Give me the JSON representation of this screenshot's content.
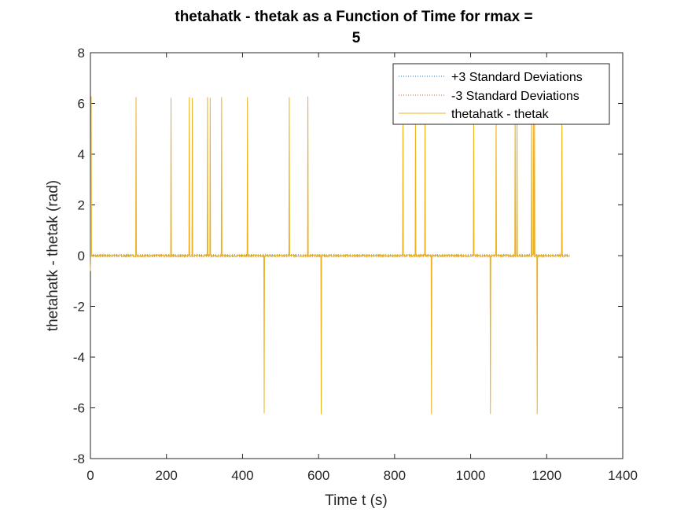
{
  "chart_data": {
    "type": "line",
    "title_line1": "thetahatk - thetak as a Function of Time for rmax =",
    "title_line2": "5",
    "xlabel": "Time t (s)",
    "ylabel": "thetahatk - thetak (rad)",
    "xlim": [
      0,
      1400
    ],
    "ylim": [
      -8,
      8
    ],
    "xticks": [
      0,
      200,
      400,
      600,
      800,
      1000,
      1200,
      1400
    ],
    "yticks": [
      -8,
      -6,
      -4,
      -2,
      0,
      2,
      4,
      6,
      8
    ],
    "grid": false,
    "legend_position": "top-right",
    "data_end_time": 1260,
    "series": [
      {
        "name": "+3 Standard Deviations",
        "color": "#0072BD",
        "style": "dotted",
        "offset": 0.03
      },
      {
        "name": "-3 Standard Deviations",
        "color": "#D95319",
        "style": "dotted",
        "offset": -0.03
      },
      {
        "name": "thetahatk - thetak",
        "color": "#EDB120",
        "style": "solid"
      }
    ],
    "positive_spikes": [
      {
        "t": 2,
        "v": 6.28
      },
      {
        "t": 120,
        "v": 6.25
      },
      {
        "t": 212,
        "v": 6.22
      },
      {
        "t": 260,
        "v": 6.25
      },
      {
        "t": 268,
        "v": 6.22
      },
      {
        "t": 308,
        "v": 6.25
      },
      {
        "t": 315,
        "v": 6.22
      },
      {
        "t": 345,
        "v": 6.25
      },
      {
        "t": 413,
        "v": 6.25
      },
      {
        "t": 523,
        "v": 6.25
      },
      {
        "t": 572,
        "v": 6.28
      },
      {
        "t": 822,
        "v": 5.9
      },
      {
        "t": 855,
        "v": 5.9
      },
      {
        "t": 880,
        "v": 5.9
      },
      {
        "t": 1008,
        "v": 5.9
      },
      {
        "t": 1067,
        "v": 5.9
      },
      {
        "t": 1117,
        "v": 5.9
      },
      {
        "t": 1122,
        "v": 5.9
      },
      {
        "t": 1160,
        "v": 5.9
      },
      {
        "t": 1165,
        "v": 5.9
      },
      {
        "t": 1168,
        "v": 5.9
      },
      {
        "t": 1240,
        "v": 5.9
      }
    ],
    "negative_spikes": [
      {
        "t": 457,
        "v": -6.22
      },
      {
        "t": 607,
        "v": -6.25
      },
      {
        "t": 897,
        "v": -6.25
      },
      {
        "t": 1052,
        "v": -6.25
      },
      {
        "t": 1175,
        "v": -6.25
      }
    ]
  }
}
